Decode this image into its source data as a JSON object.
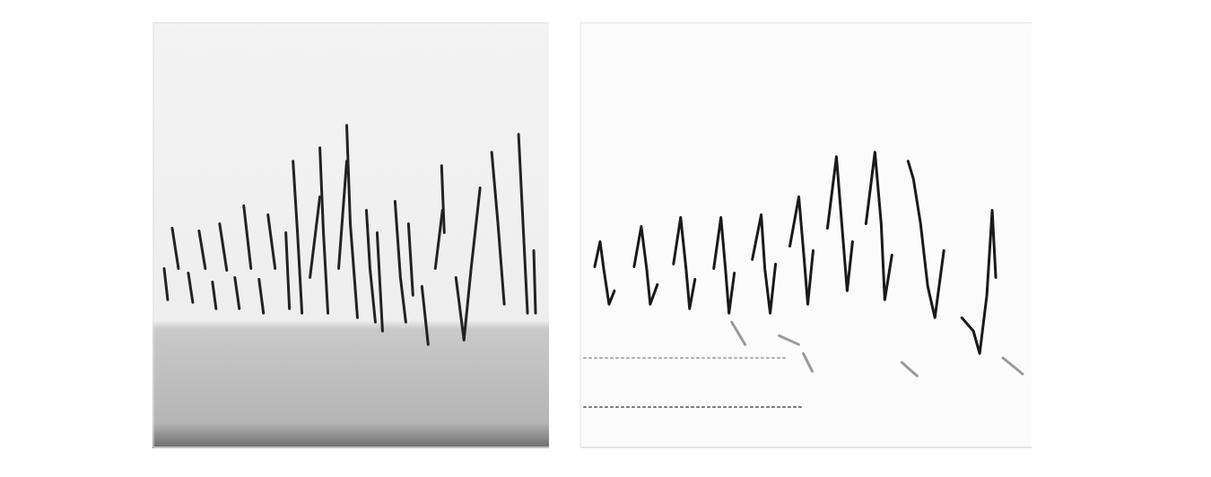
{
  "chart_data": [
    {
      "type": "line",
      "tick_labels": false,
      "grid": true,
      "xlim": [
        0,
        442
      ],
      "ylim": [
        0,
        475
      ],
      "yticks": [
        45,
        90,
        135,
        180,
        225,
        270,
        315,
        360,
        405,
        450
      ],
      "series": [
        {
          "color": "#222222",
          "line_style": "solid",
          "x": [
            12,
            16
          ],
          "values": [
            200,
            165
          ]
        },
        {
          "color": "#222222",
          "line_style": "solid",
          "x": [
            21,
            28
          ],
          "values": [
            245,
            200
          ]
        },
        {
          "color": "#222222",
          "line_style": "solid",
          "x": [
            39,
            44
          ],
          "values": [
            195,
            162
          ]
        },
        {
          "color": "#222222",
          "line_style": "solid",
          "x": [
            51,
            58
          ],
          "values": [
            242,
            200
          ]
        },
        {
          "color": "#222222",
          "line_style": "solid",
          "x": [
            66,
            70
          ],
          "values": [
            185,
            155
          ]
        },
        {
          "color": "#222222",
          "line_style": "solid",
          "x": [
            74,
            82
          ],
          "values": [
            250,
            198
          ]
        },
        {
          "color": "#222222",
          "line_style": "solid",
          "x": [
            91,
            96
          ],
          "values": [
            190,
            155
          ]
        },
        {
          "color": "#222222",
          "line_style": "solid",
          "x": [
            101,
            109
          ],
          "values": [
            270,
            200
          ]
        },
        {
          "color": "#222222",
          "line_style": "solid",
          "x": [
            118,
            123
          ],
          "values": [
            188,
            150
          ]
        },
        {
          "color": "#222222",
          "line_style": "solid",
          "x": [
            128,
            136
          ],
          "values": [
            260,
            200
          ]
        },
        {
          "color": "#222222",
          "line_style": "solid",
          "x": [
            148,
            152
          ],
          "values": [
            240,
            155
          ]
        },
        {
          "color": "#222222",
          "line_style": "solid",
          "x": [
            156,
            161,
            166
          ],
          "values": [
            320,
            240,
            150
          ]
        },
        {
          "color": "#222222",
          "line_style": "solid",
          "x": [
            175,
            186
          ],
          "values": [
            190,
            280
          ]
        },
        {
          "color": "#222222",
          "line_style": "solid",
          "x": [
            186,
            190,
            195
          ],
          "values": [
            335,
            240,
            150
          ]
        },
        {
          "color": "#222222",
          "line_style": "solid",
          "x": [
            207,
            216
          ],
          "values": [
            200,
            320
          ]
        },
        {
          "color": "#222222",
          "line_style": "solid",
          "x": [
            216,
            220,
            228
          ],
          "values": [
            360,
            250,
            145
          ]
        },
        {
          "color": "#222222",
          "line_style": "solid",
          "x": [
            238,
            242,
            248
          ],
          "values": [
            265,
            200,
            140
          ]
        },
        {
          "color": "#222222",
          "line_style": "solid",
          "x": [
            250,
            256
          ],
          "values": [
            240,
            130
          ]
        },
        {
          "color": "#222222",
          "line_style": "solid",
          "x": [
            270,
            276,
            282
          ],
          "values": [
            275,
            190,
            140
          ]
        },
        {
          "color": "#222222",
          "line_style": "solid",
          "x": [
            285,
            290
          ],
          "values": [
            250,
            170
          ]
        },
        {
          "color": "#222222",
          "line_style": "solid",
          "x": [
            300,
            307
          ],
          "values": [
            180,
            115
          ]
        },
        {
          "color": "#222222",
          "line_style": "solid",
          "x": [
            315,
            323
          ],
          "values": [
            200,
            265
          ]
        },
        {
          "color": "#222222",
          "line_style": "solid",
          "x": [
            322,
            325
          ],
          "values": [
            315,
            240
          ]
        },
        {
          "color": "#222222",
          "line_style": "solid",
          "x": [
            338,
            347,
            355,
            365
          ],
          "values": [
            190,
            120,
            200,
            290
          ]
        },
        {
          "color": "#222222",
          "line_style": "solid",
          "x": [
            378,
            385,
            392
          ],
          "values": [
            330,
            250,
            160
          ]
        },
        {
          "color": "#222222",
          "line_style": "solid",
          "x": [
            408,
            412,
            418
          ],
          "values": [
            350,
            270,
            150
          ]
        },
        {
          "color": "#222222",
          "line_style": "solid",
          "x": [
            425,
            427
          ],
          "values": [
            220,
            150
          ]
        }
      ]
    },
    {
      "type": "line",
      "tick_labels": false,
      "grid": true,
      "xlim": [
        0,
        504
      ],
      "ylim": [
        0,
        475
      ],
      "yticks": [
        45,
        90,
        135,
        180,
        225,
        270,
        315,
        360,
        405,
        450
      ],
      "series": [
        {
          "color": "#1a1a1a",
          "line_style": "solid",
          "x": [
            16,
            22,
            26,
            32,
            38
          ],
          "values": [
            202,
            230,
            200,
            160,
            175
          ]
        },
        {
          "color": "#1a1a1a",
          "line_style": "solid",
          "x": [
            60,
            68,
            74,
            78,
            86
          ],
          "values": [
            202,
            247,
            200,
            160,
            182
          ]
        },
        {
          "color": "#1a1a1a",
          "line_style": "solid",
          "x": [
            104,
            112,
            118,
            122,
            128
          ],
          "values": [
            205,
            257,
            200,
            155,
            188
          ]
        },
        {
          "color": "#1a1a1a",
          "line_style": "solid",
          "x": [
            149,
            157,
            162,
            166,
            172
          ],
          "values": [
            200,
            257,
            200,
            150,
            195
          ]
        },
        {
          "color": "#1a1a1a",
          "line_style": "solid",
          "x": [
            192,
            202,
            206,
            212,
            218
          ],
          "values": [
            210,
            260,
            200,
            150,
            205
          ]
        },
        {
          "color": "#1a1a1a",
          "line_style": "solid",
          "x": [
            234,
            244,
            250,
            254,
            260
          ],
          "values": [
            225,
            280,
            210,
            160,
            220
          ]
        },
        {
          "color": "#1a1a1a",
          "line_style": "solid",
          "x": [
            276,
            286,
            292,
            298,
            304
          ],
          "values": [
            245,
            325,
            250,
            175,
            230
          ]
        },
        {
          "color": "#1a1a1a",
          "line_style": "solid",
          "x": [
            319,
            329,
            336,
            340,
            348
          ],
          "values": [
            250,
            330,
            250,
            165,
            215
          ]
        },
        {
          "color": "#1a1a1a",
          "line_style": "solid",
          "x": [
            366,
            372,
            380,
            388,
            396,
            406
          ],
          "values": [
            320,
            300,
            250,
            180,
            145,
            220
          ]
        },
        {
          "color": "#1a1a1a",
          "line_style": "solid",
          "x": [
            426,
            439,
            446,
            454,
            460,
            464
          ],
          "values": [
            145,
            130,
            105,
            170,
            265,
            190
          ]
        },
        {
          "color": "#9a9a9a",
          "line_style": "solid",
          "x": [
            169,
            184
          ],
          "values": [
            140,
            115
          ]
        },
        {
          "color": "#9a9a9a",
          "line_style": "solid",
          "x": [
            222,
            244
          ],
          "values": [
            125,
            115
          ]
        },
        {
          "color": "#9a9a9a",
          "line_style": "solid",
          "x": [
            249,
            259
          ],
          "values": [
            105,
            85
          ]
        },
        {
          "color": "#9a9a9a",
          "line_style": "solid",
          "x": [
            359,
            376
          ],
          "values": [
            95,
            80
          ]
        },
        {
          "color": "#9a9a9a",
          "line_style": "solid",
          "x": [
            472,
            494
          ],
          "values": [
            100,
            82
          ]
        },
        {
          "color": "#777777",
          "line_style": "dotted",
          "x": [
            4,
            249
          ],
          "values": [
            45,
            45
          ]
        },
        {
          "color": "#aaaaaa",
          "line_style": "dotted",
          "x": [
            4,
            230
          ],
          "values": [
            100,
            100
          ]
        }
      ]
    }
  ]
}
